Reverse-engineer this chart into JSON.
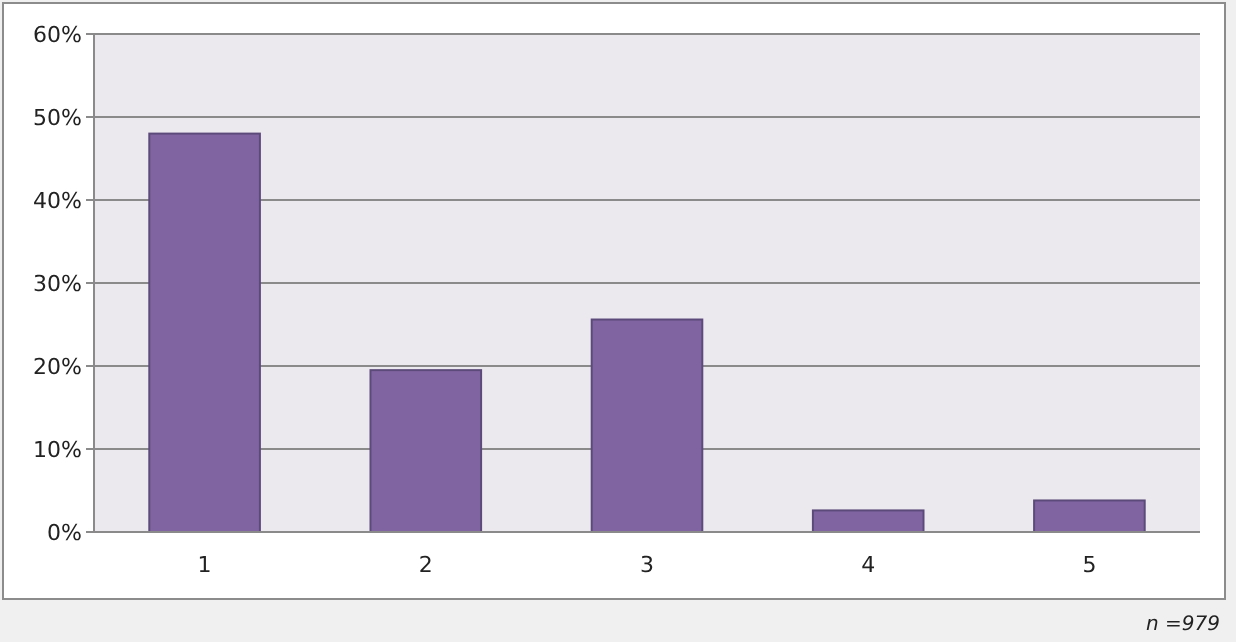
{
  "chart_data": {
    "type": "bar",
    "categories": [
      "1",
      "2",
      "3",
      "4",
      "5"
    ],
    "values": [
      48,
      19.5,
      25.6,
      2.6,
      3.8
    ],
    "color": "#8064a2",
    "ylim": [
      0,
      60
    ],
    "yticks": [
      {
        "value": 0,
        "label": "0%"
      },
      {
        "value": 10,
        "label": "10%"
      },
      {
        "value": 20,
        "label": "20%"
      },
      {
        "value": 30,
        "label": "30%"
      },
      {
        "value": 40,
        "label": "40%"
      },
      {
        "value": 50,
        "label": "50%"
      },
      {
        "value": 60,
        "label": "60%"
      }
    ],
    "grid": "y",
    "annotations": [
      "n =979"
    ]
  }
}
